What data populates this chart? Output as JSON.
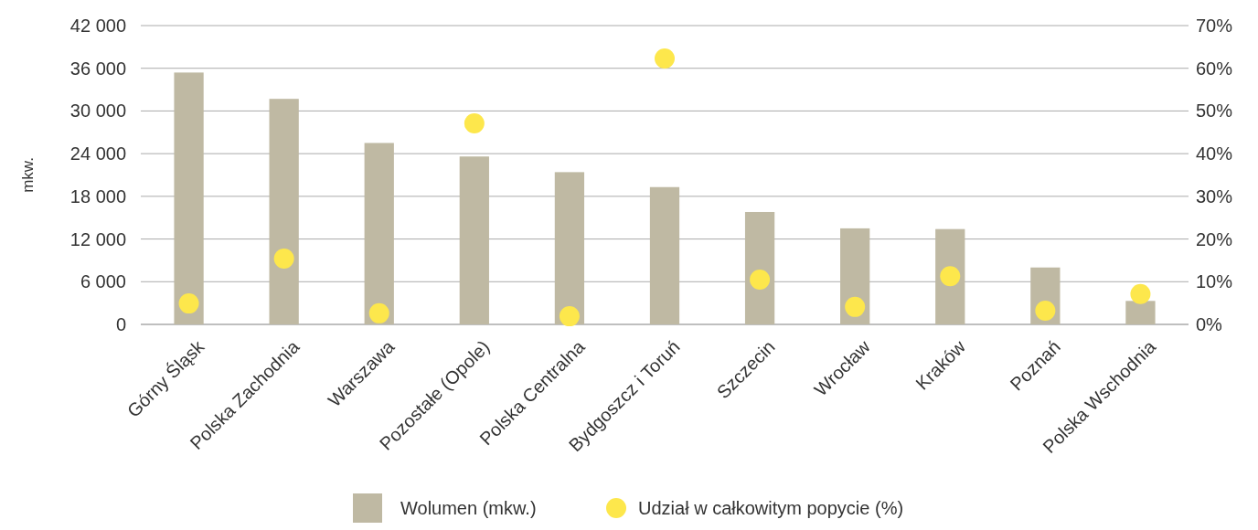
{
  "chart_data": {
    "type": "bar",
    "ylabel": "mkw.",
    "categories": [
      "Górny Śląsk",
      "Polska Zachodnia",
      "Warszawa",
      "Pozostałe (Opole)",
      "Polska Centralna",
      "Bydgoszcz i Toruń",
      "Szczecin",
      "Wrocław",
      "Kraków",
      "Poznań",
      "Polska Wschodnia"
    ],
    "series": [
      {
        "name": "Wolumen (mkw.)",
        "color": "#bfb9a3",
        "values": [
          35400,
          31700,
          25500,
          23600,
          21400,
          19300,
          15800,
          13500,
          13400,
          8000,
          3300
        ]
      },
      {
        "name": "Udział w całkowitym popycie (%)",
        "type": "scatter",
        "axis": "y2",
        "color": "#fde74c",
        "values": [
          4.9,
          15.4,
          2.6,
          47.1,
          1.9,
          62.3,
          10.5,
          4.1,
          11.3,
          3.2,
          7.1
        ]
      }
    ],
    "ylim": [
      0,
      42000
    ],
    "yticks": [
      0,
      {
        "value": 6000,
        "label": "6 000"
      },
      {
        "value": 12000,
        "label": "12 000"
      },
      {
        "value": 18000,
        "label": "18 000"
      },
      {
        "value": 24000,
        "label": "24 000"
      },
      {
        "value": 30000,
        "label": "30 000"
      },
      {
        "value": 36000,
        "label": "36 000"
      },
      {
        "value": 42000,
        "label": "42 000"
      }
    ],
    "y2lim": [
      0,
      70
    ],
    "y2ticks": [
      {
        "value": 0,
        "label": "0%"
      },
      {
        "value": 10,
        "label": "10%"
      },
      {
        "value": 20,
        "label": "20%"
      },
      {
        "value": 30,
        "label": "30%"
      },
      {
        "value": 40,
        "label": "40%"
      },
      {
        "value": 50,
        "label": "50%"
      },
      {
        "value": 60,
        "label": "60%"
      },
      {
        "value": 70,
        "label": "70%"
      }
    ],
    "grid": "y",
    "legend": "bottom",
    "marker": "circle"
  }
}
